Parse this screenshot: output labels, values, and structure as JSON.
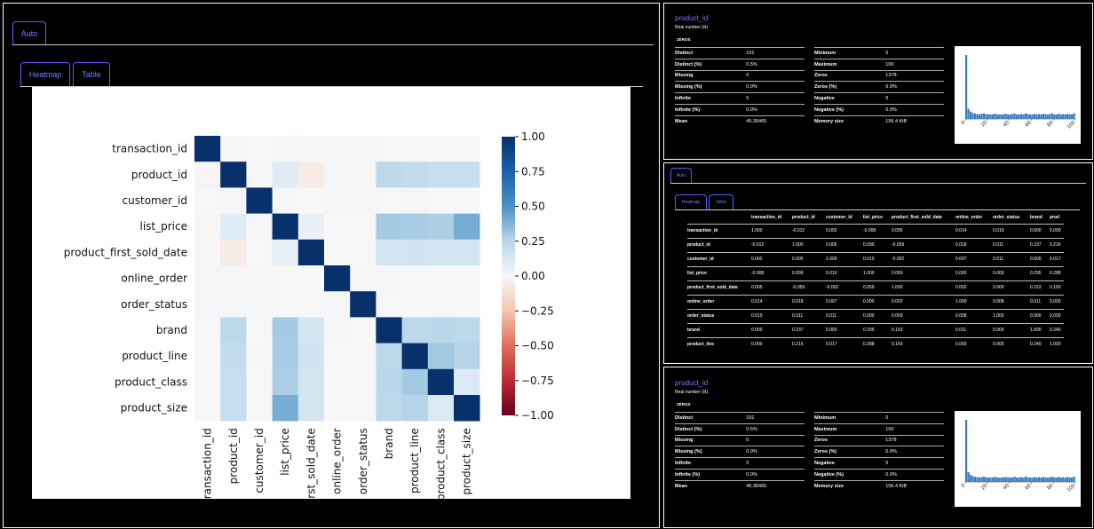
{
  "left_panel": {
    "outer_tab": "Auto",
    "inner_tabs": [
      "Heatmap",
      "Table"
    ]
  },
  "heatmap": {
    "variables": [
      "transaction_id",
      "product_id",
      "customer_id",
      "list_price",
      "product_first_sold_date",
      "online_order",
      "order_status",
      "brand",
      "product_line",
      "product_class",
      "product_size"
    ],
    "x_tick_labels": [
      "transaction_id",
      "product_id",
      "customer_id",
      "list_price",
      "first_sold_date",
      "online_order",
      "order_status",
      "brand",
      "product_line",
      "product_class",
      "product_size"
    ],
    "colorbar_ticks": [
      "1.00",
      "0.75",
      "0.50",
      "0.25",
      "0.00",
      "−0.25",
      "−0.50",
      "−0.75",
      "−1.00"
    ],
    "colors": {
      "positive": "#08306b",
      "mid": "#f7f7f7",
      "negative": "#67001f"
    }
  },
  "chart_data": {
    "type": "heatmap",
    "colorbar_range": [
      -1,
      1
    ],
    "rows": [
      "transaction_id",
      "product_id",
      "customer_id",
      "list_price",
      "product_first_sold_date",
      "online_order",
      "order_status",
      "brand",
      "product_line",
      "product_class",
      "product_size"
    ],
    "columns": [
      "transaction_id",
      "product_id",
      "customer_id",
      "list_price",
      "product_first_sold_date",
      "online_order",
      "order_status",
      "brand",
      "product_line",
      "product_class",
      "product_size"
    ],
    "values": [
      [
        1.0,
        -0.012,
        0.002,
        -0.008,
        0.005,
        0.014,
        0.019,
        0.0,
        0.0,
        0.0,
        0.0
      ],
      [
        -0.012,
        1.0,
        0.005,
        0.099,
        -0.059,
        0.018,
        0.011,
        0.237,
        0.216,
        0.2,
        0.2
      ],
      [
        0.002,
        0.005,
        1.0,
        0.01,
        -0.002,
        0.007,
        0.011,
        0.0,
        0.017,
        0.0,
        0.0
      ],
      [
        -0.008,
        0.099,
        0.01,
        1.0,
        0.059,
        0.0,
        0.0,
        0.295,
        0.288,
        0.28,
        0.4
      ],
      [
        0.005,
        -0.059,
        -0.002,
        0.059,
        1.0,
        0.002,
        0.0,
        0.153,
        0.16,
        0.15,
        0.15
      ],
      [
        0.014,
        0.018,
        0.007,
        0.0,
        0.002,
        1.0,
        0.008,
        0.011,
        0.0,
        0.0,
        0.0
      ],
      [
        0.019,
        0.011,
        0.011,
        0.0,
        0.0,
        0.008,
        1.0,
        0.0,
        0.0,
        0.0,
        0.0
      ],
      [
        0.0,
        0.237,
        0.0,
        0.295,
        0.153,
        0.011,
        0.0,
        1.0,
        0.24,
        0.25,
        0.24
      ],
      [
        0.0,
        0.216,
        0.017,
        0.288,
        0.16,
        0.0,
        0.0,
        0.24,
        1.0,
        0.3,
        0.26
      ],
      [
        0.0,
        0.2,
        0.0,
        0.28,
        0.15,
        0.0,
        0.0,
        0.25,
        0.3,
        1.0,
        0.12
      ],
      [
        0.0,
        0.2,
        0.0,
        0.4,
        0.15,
        0.0,
        0.0,
        0.24,
        0.26,
        0.12,
        1.0
      ]
    ]
  },
  "stats_top": {
    "name": "product_id",
    "type": "Real number (ℝ)",
    "badge": "ZEROS",
    "left": [
      [
        "Distinct",
        "101"
      ],
      [
        "Distinct (%)",
        "0.5%"
      ],
      [
        "Missing",
        "0"
      ],
      [
        "Missing (%)",
        "0.0%"
      ],
      [
        "Infinite",
        "0"
      ],
      [
        "Infinite (%)",
        "0.0%"
      ],
      [
        "Mean",
        "45.36465"
      ]
    ],
    "right": [
      [
        "Minimum",
        "0"
      ],
      [
        "Maximum",
        "100"
      ],
      [
        "Zeros",
        "1378"
      ],
      [
        "Zeros (%)",
        "6.9%"
      ],
      [
        "Negative",
        "0"
      ],
      [
        "Negative (%)",
        "0.0%"
      ],
      [
        "Memory size",
        "156.4 KiB"
      ]
    ]
  },
  "stats_bottom": {
    "name": "product_id",
    "type": "Real number (ℝ)",
    "badge": "ZEROS",
    "left": [
      [
        "Distinct",
        "101"
      ],
      [
        "Distinct (%)",
        "0.5%"
      ],
      [
        "Missing",
        "0"
      ],
      [
        "Missing (%)",
        "0.0%"
      ],
      [
        "Infinite",
        "0"
      ],
      [
        "Infinite (%)",
        "0.0%"
      ],
      [
        "Mean",
        "45.36465"
      ]
    ],
    "right": [
      [
        "Minimum",
        "0"
      ],
      [
        "Maximum",
        "100"
      ],
      [
        "Zeros",
        "1378"
      ],
      [
        "Zeros (%)",
        "6.9%"
      ],
      [
        "Negative",
        "0"
      ],
      [
        "Negative (%)",
        "0.0%"
      ],
      [
        "Memory size",
        "156.4 KiB"
      ]
    ]
  },
  "histogram": {
    "x_ticks": [
      "0",
      "20",
      "40",
      "60",
      "80",
      "100"
    ],
    "bar_color": "#3a7bbf",
    "counts": [
      1378,
      220,
      160,
      130,
      115,
      105,
      100,
      110,
      120,
      105,
      100,
      98,
      100,
      115,
      102,
      98,
      96,
      104,
      110,
      98,
      100,
      102,
      118,
      96,
      100,
      108,
      98,
      122,
      104,
      100,
      95,
      112,
      100,
      106,
      98,
      110,
      102,
      96,
      104,
      118,
      100,
      98,
      112,
      100,
      104,
      96,
      108,
      102,
      100,
      122
    ]
  },
  "corr_panel": {
    "outer_tab": "Auto",
    "inner_tabs": [
      "Heatmap",
      "Table"
    ],
    "columns": [
      "",
      "transaction_id",
      "product_id",
      "customer_id",
      "list_price",
      "product_first_sold_date",
      "online_order",
      "order_status",
      "brand",
      "prod"
    ],
    "rows": [
      [
        "transaction_id",
        "1.000",
        "-0.012",
        "0.002",
        "-0.008",
        "0.005",
        "0.014",
        "0.019",
        "0.000",
        "0.000"
      ],
      [
        "product_id",
        "-0.012",
        "1.000",
        "0.005",
        "0.099",
        "-0.059",
        "0.018",
        "0.011",
        "0.237",
        "0.216"
      ],
      [
        "customer_id",
        "0.002",
        "0.005",
        "1.000",
        "0.010",
        "-0.002",
        "0.007",
        "0.011",
        "0.000",
        "0.017"
      ],
      [
        "list_price",
        "-0.008",
        "0.099",
        "0.010",
        "1.000",
        "0.059",
        "0.000",
        "0.000",
        "0.295",
        "0.288"
      ],
      [
        "product_first_sold_date",
        "0.005",
        "-0.059",
        "-0.002",
        "0.059",
        "1.000",
        "0.002",
        "0.000",
        "0.153",
        "0.160"
      ],
      [
        "online_order",
        "0.014",
        "0.018",
        "0.007",
        "0.000",
        "0.002",
        "1.000",
        "0.008",
        "0.011",
        "0.000"
      ],
      [
        "order_status",
        "0.019",
        "0.011",
        "0.011",
        "0.000",
        "0.000",
        "0.008",
        "1.000",
        "0.000",
        "0.000"
      ],
      [
        "brand",
        "0.000",
        "0.237",
        "0.000",
        "0.295",
        "0.153",
        "0.011",
        "0.000",
        "1.000",
        "0.240"
      ],
      [
        "product_line",
        "0.000",
        "0.216",
        "0.017",
        "0.288",
        "0.160",
        "0.000",
        "0.000",
        "0.240",
        "1.000"
      ]
    ]
  }
}
